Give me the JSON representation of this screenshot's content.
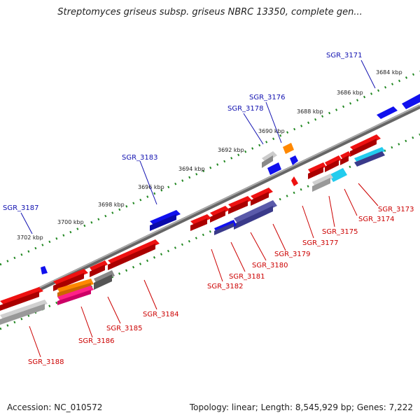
{
  "title": "Streptomyces griseus subsp. griseus NBRC 13350, complete gen...",
  "accession": "Accession: NC_010572",
  "summary": "Topology: linear; Length: 8,545,929 bp; Genes: 7,222",
  "colors": {
    "red": "#ee1111",
    "blue": "#1010ee",
    "gray": "#a8a8a8",
    "darkgray": "#666666",
    "orange": "#ff8800",
    "magenta": "#ff2288",
    "navy": "#3a3a8a",
    "cyan": "#22ccee",
    "axis": "#777777",
    "tick": "#228822",
    "label_top": "#1010b0",
    "label_bottom": "#cc0000"
  },
  "kbp_labels": [
    "3684 kbp",
    "3686 kbp",
    "3688 kbp",
    "3690 kbp",
    "3692 kbp",
    "3694 kbp",
    "3696 kbp",
    "3698 kbp",
    "3700 kbp",
    "3702 kbp"
  ],
  "top_gene_labels": [
    "SGR_3171",
    "SGR_3176",
    "SGR_3178",
    "SGR_3183",
    "SGR_3187"
  ],
  "bottom_gene_labels": [
    "SGR_3173",
    "SGR_3174",
    "SGR_3175",
    "SGR_3177",
    "SGR_3179",
    "SGR_3180",
    "SGR_3181",
    "SGR_3182",
    "SGR_3184",
    "SGR_3185",
    "SGR_3186",
    "SGR_3188"
  ]
}
